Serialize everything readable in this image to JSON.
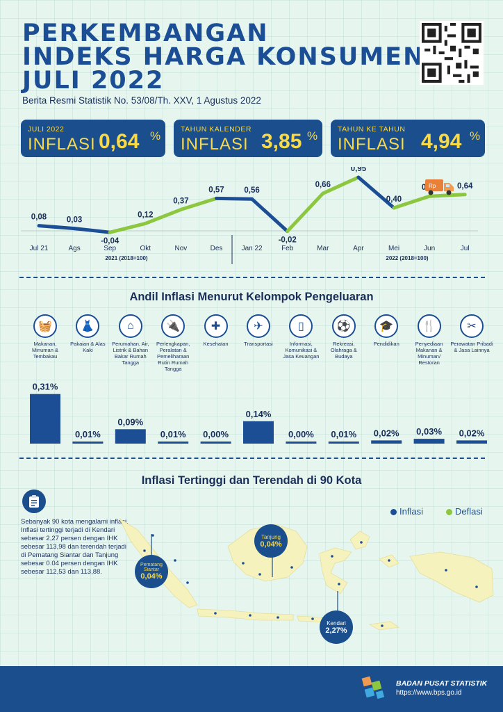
{
  "header": {
    "title_line1": "PERKEMBANGAN",
    "title_line2": "INDEKS HARGA KONSUMEN",
    "title_line3": "JULI 2022",
    "subtitle": "Berita Resmi Statistik No. 53/08/Th. XXV, 1 Agustus 2022"
  },
  "cards": [
    {
      "caption": "JULI 2022",
      "label": "INFLASI",
      "value": "0,64",
      "unit": "%"
    },
    {
      "caption": "TAHUN KALENDER",
      "label": "INFLASI",
      "value": "3,85",
      "unit": "%"
    },
    {
      "caption": "TAHUN KE TAHUN",
      "label": "INFLASI",
      "value": "4,94",
      "unit": "%"
    }
  ],
  "chart_data": [
    {
      "type": "line",
      "categories": [
        "Jul 21",
        "Ags",
        "Sep",
        "Okt",
        "Nov",
        "Des",
        "Jan 22",
        "Feb",
        "Mar",
        "Apr",
        "Mei",
        "Jun",
        "Jul"
      ],
      "values": [
        0.08,
        0.03,
        -0.04,
        0.12,
        0.37,
        0.57,
        0.56,
        -0.02,
        0.66,
        0.95,
        0.4,
        0.61,
        0.64
      ],
      "value_labels": [
        "0,08",
        "0,03",
        "-0,04",
        "0,12",
        "0,37",
        "0,57",
        "0,56",
        "-0,02",
        "0,66",
        "0,95",
        "0,40",
        "0,61",
        "0,64"
      ],
      "group_labels": [
        "2021 (2018=100)",
        "2022 (2018=100)"
      ],
      "colors": {
        "dark": "#1b4e94",
        "light": "#8dc63f"
      }
    },
    {
      "type": "bar",
      "title": "Andil Inflasi Menurut Kelompok Pengeluaran",
      "categories": [
        "Makanan, Minuman & Tembakau",
        "Pakaian & Alas Kaki",
        "Perumahan, Air, Listrik & Bahan Bakar Rumah Tangga",
        "Perlengkapan, Peralatan & Pemeliharaan Rutin Rumah Tangga",
        "Kesehatan",
        "Transportasi",
        "Informasi, Komunikasi & Jasa Keuangan",
        "Rekreasi, Olahraga & Budaya",
        "Pendidikan",
        "Penyediaan Makanan & Minuman/ Restoran",
        "Perawatan Pribadi & Jasa Lainnya"
      ],
      "values": [
        0.31,
        0.01,
        0.09,
        0.01,
        0.0,
        0.14,
        0.0,
        0.01,
        0.02,
        0.03,
        0.02
      ],
      "value_labels": [
        "0,31%",
        "0,01%",
        "0,09%",
        "0,01%",
        "0,00%",
        "0,14%",
        "0,00%",
        "0,01%",
        "0,02%",
        "0,03%",
        "0,02%"
      ],
      "icons": [
        "food-basket-icon",
        "dress-icon",
        "house-icon",
        "appliance-icon",
        "medical-kit-icon",
        "airplane-icon",
        "phone-icon",
        "sports-icon",
        "graduation-cap-icon",
        "restaurant-icon",
        "scissors-icon"
      ],
      "color": "#1b4e94"
    }
  ],
  "map": {
    "title": "Inflasi Tertinggi dan Terendah di 90 Kota",
    "legend": [
      {
        "label": "Inflasi",
        "color": "#1b4e94"
      },
      {
        "label": "Deflasi",
        "color": "#8dc63f"
      }
    ],
    "note": "Sebanyak 90 kota mengalami inflasi. Inflasi tertinggi terjadi di Kendari sebesar 2,27 persen dengan IHK sebesar 113,98 dan terendah terjadi di Pematang Siantar dan Tanjung sebesar 0.04 persen dengan IHK sebesar 112,53 dan 113,88.",
    "bubbles": [
      {
        "city": "Pematang Siantar",
        "value": "0,04%"
      },
      {
        "city": "Tanjung",
        "value": "0,04%"
      },
      {
        "city": "Kendari",
        "value": "2,27%"
      }
    ]
  },
  "footer": {
    "org": "BADAN PUSAT STATISTIK",
    "url": "https://www.bps.go.id"
  }
}
